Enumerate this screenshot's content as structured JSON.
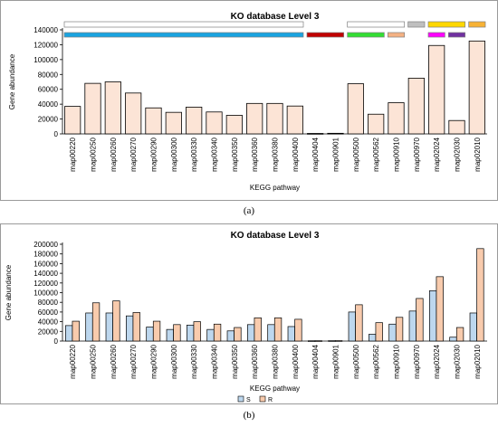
{
  "panel_labels": {
    "a": "(a)",
    "b": "(b)"
  },
  "chart_data": [
    {
      "type": "bar",
      "title": "KO database Level 3",
      "xlabel": "KEGG pathway",
      "ylabel": "Gene abundance",
      "ylim": [
        0,
        140000
      ],
      "yticks": [
        "0",
        "20000",
        "40000",
        "60000",
        "80000",
        "100000",
        "120000",
        "140000"
      ],
      "categories": [
        "map00220",
        "map00250",
        "map00260",
        "map00270",
        "map00290",
        "map00300",
        "map00330",
        "map00340",
        "map00350",
        "map00360",
        "map00380",
        "map00400",
        "map00404",
        "map00901",
        "map00500",
        "map00562",
        "map00910",
        "map00970",
        "map02024",
        "map02030",
        "map02010"
      ],
      "values": [
        37000,
        68000,
        70000,
        55000,
        35000,
        29000,
        36000,
        29500,
        25000,
        41000,
        41000,
        37500,
        600,
        800,
        67500,
        26500,
        42000,
        75000,
        119000,
        18000,
        125000
      ],
      "bar_color": "#fce4d6",
      "grid": false,
      "legend": "none",
      "category_groups": [
        {
          "start": 0,
          "end": 11,
          "color": "#ffffff"
        },
        {
          "start": 14,
          "end": 16,
          "color": "#ffffff"
        },
        {
          "start": 17,
          "end": 17,
          "color": "#bfbfbf"
        },
        {
          "start": 18,
          "end": 19,
          "color": "#ffd700"
        },
        {
          "start": 20,
          "end": 20,
          "color": "#f7b235"
        },
        {
          "start": 0,
          "end": 11,
          "color": "#1aa3e0"
        },
        {
          "start": 12,
          "end": 13,
          "color": "#c00000"
        },
        {
          "start": 14,
          "end": 15,
          "color": "#33dd33"
        },
        {
          "start": 16,
          "end": 16,
          "color": "#f4b183"
        },
        {
          "start": 18,
          "end": 18,
          "color": "#ff00ff"
        },
        {
          "start": 19,
          "end": 19,
          "color": "#7030a0"
        }
      ]
    },
    {
      "type": "bar",
      "title": "KO database Level 3",
      "xlabel": "KEGG pathway",
      "ylabel": "Gene abundance",
      "ylim": [
        0,
        200000
      ],
      "yticks": [
        "0",
        "20000",
        "40000",
        "60000",
        "80000",
        "100000",
        "120000",
        "140000",
        "160000",
        "180000",
        "200000"
      ],
      "categories": [
        "map00220",
        "map00250",
        "map00260",
        "map00270",
        "map00290",
        "map00300",
        "map00330",
        "map00340",
        "map00350",
        "map00360",
        "map00380",
        "map00400",
        "map00404",
        "map00901",
        "map00500",
        "map00562",
        "map00910",
        "map00970",
        "map02024",
        "map02030",
        "map02010"
      ],
      "series": [
        {
          "name": "S",
          "color": "#bdd7ee",
          "values": [
            32000,
            58000,
            58000,
            52000,
            29000,
            24000,
            33000,
            24000,
            21000,
            34000,
            34000,
            30000,
            600,
            800,
            60000,
            14000,
            35000,
            62000,
            104000,
            8000,
            58000
          ]
        },
        {
          "name": "R",
          "color": "#f8cbad",
          "values": [
            41000,
            79000,
            83000,
            59000,
            41000,
            34000,
            40000,
            35000,
            28000,
            48000,
            48000,
            45000,
            700,
            900,
            75000,
            38000,
            49000,
            88000,
            133000,
            28000,
            191000
          ]
        }
      ],
      "grid": false,
      "legend": "bottom-left"
    }
  ]
}
